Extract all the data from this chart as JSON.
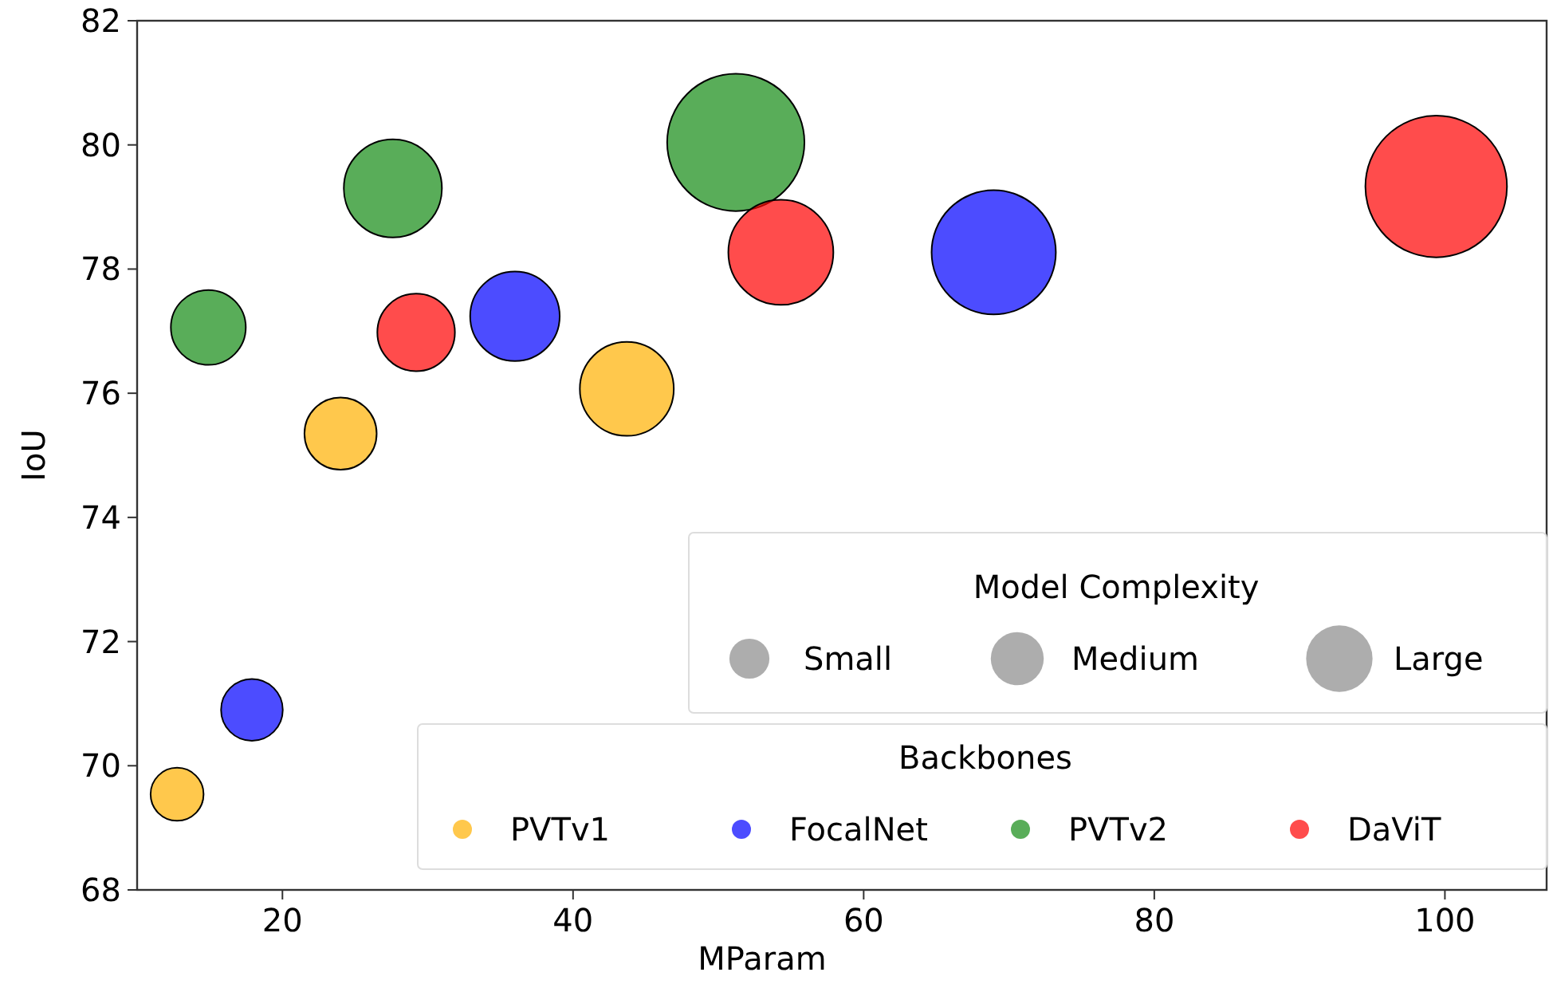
{
  "chart_data": {
    "type": "bubble",
    "xlabel": "MParam",
    "ylabel": "IoU",
    "xlim": [
      10,
      107
    ],
    "ylim": [
      68,
      82
    ],
    "xticks": [
      20,
      40,
      60,
      80,
      100
    ],
    "yticks": [
      68,
      70,
      72,
      74,
      76,
      78,
      80,
      82
    ],
    "grid": false,
    "legend": "bottom right",
    "legend_title": "Backbones",
    "marker": "circle",
    "annotations": [
      "Model Complexity"
    ],
    "size_legend": [
      {
        "value": 0.08,
        "label": "Small"
      },
      {
        "value": 0.14,
        "label": "Medium"
      },
      {
        "value": 0.22,
        "label": "Large"
      }
    ],
    "series": [
      {
        "name": "PVTv1",
        "color": "#ffb000",
        "x": [
          12.75,
          24.0,
          43.7
        ],
        "values": [
          69.54,
          75.35,
          76.07
        ],
        "sizes": [
          0.14,
          0.26,
          0.44
        ]
      },
      {
        "name": "FocalNet",
        "color": "#0000ff",
        "x": [
          17.9,
          36.0,
          68.95
        ],
        "values": [
          70.9,
          77.24,
          78.27
        ],
        "sizes": [
          0.19,
          0.4,
          0.77
        ]
      },
      {
        "name": "PVTv2",
        "color": "#138a13",
        "x": [
          14.9,
          27.6,
          51.2
        ],
        "values": [
          77.06,
          79.3,
          80.04
        ],
        "sizes": [
          0.28,
          0.48,
          0.94
        ]
      },
      {
        "name": "DaViT",
        "color": "#ff0000",
        "x": [
          29.2,
          54.3,
          99.4
        ],
        "values": [
          76.98,
          78.27,
          79.33
        ],
        "sizes": [
          0.3,
          0.55,
          1
        ]
      }
    ]
  }
}
